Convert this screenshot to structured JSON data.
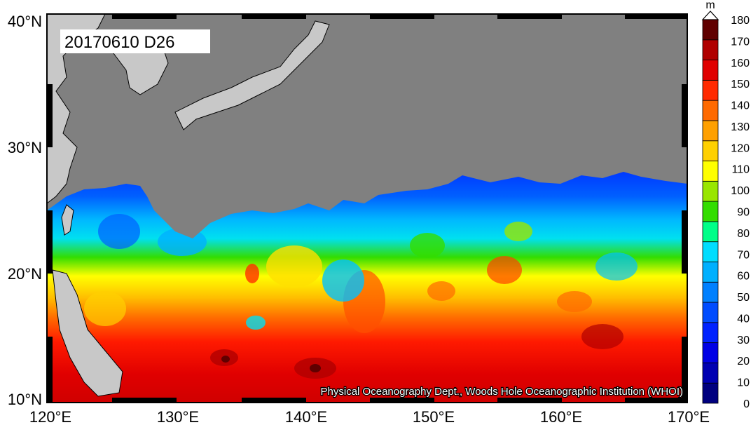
{
  "map": {
    "stamp": "20170610 D26",
    "credit": "Physical Oceanography Dept., Woods Hole Oceanographic Institution (WHOI)",
    "lat_ticks": [
      "10°N",
      "20°N",
      "30°N",
      "40°N"
    ],
    "lon_ticks": [
      "120°E",
      "130°E",
      "140°E",
      "150°E",
      "160°E",
      "170°E"
    ],
    "colors": {
      "land": "#c8c8c8",
      "no_data": "#808080",
      "frame": "#000000"
    }
  },
  "colorbar": {
    "unit": "m",
    "labels": [
      "0",
      "10",
      "20",
      "30",
      "40",
      "50",
      "60",
      "70",
      "80",
      "90",
      "100",
      "110",
      "120",
      "130",
      "140",
      "150",
      "160",
      "170",
      "180"
    ],
    "colors": [
      "#00007f",
      "#0000b2",
      "#0000e5",
      "#0022ff",
      "#004cff",
      "#0080ff",
      "#00b0ff",
      "#00ddff",
      "#00ff88",
      "#33dd00",
      "#99e600",
      "#ffff00",
      "#ffd000",
      "#ffa000",
      "#ff6a00",
      "#ff2a00",
      "#e00000",
      "#b00000",
      "#600000"
    ]
  }
}
